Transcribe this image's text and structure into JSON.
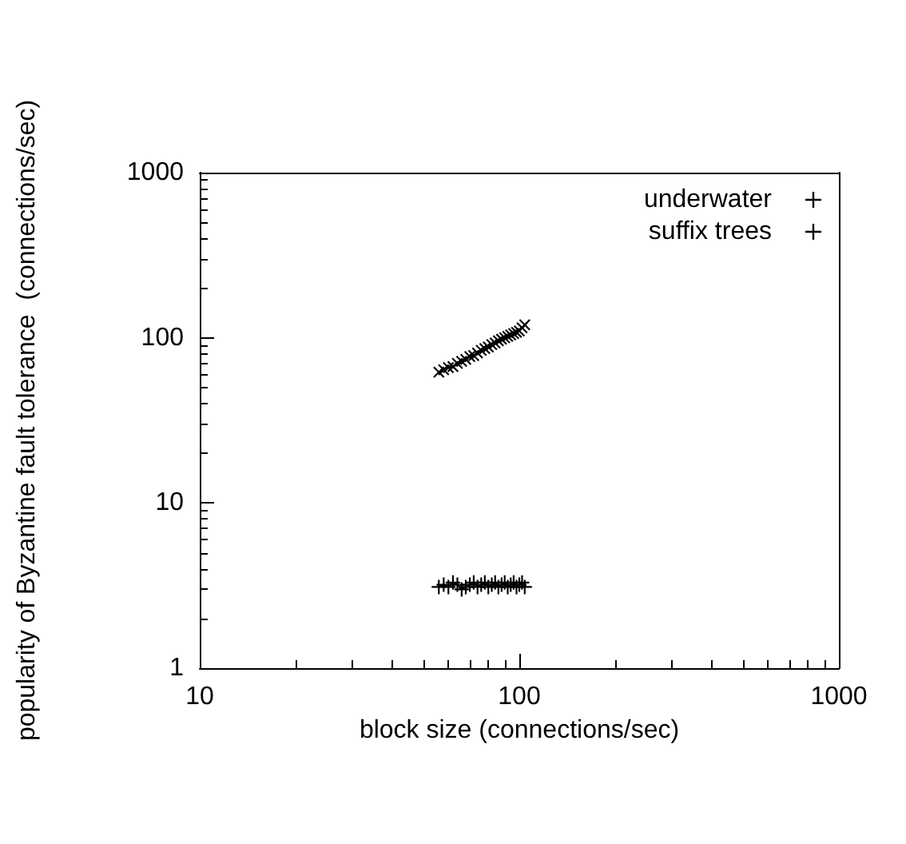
{
  "chart_data": {
    "type": "line",
    "xlabel": "block size (connections/sec)",
    "ylabel": "popularity of Byzantine fault tolerance  (connections/sec)",
    "log": "xy",
    "xlim": [
      10,
      1000
    ],
    "ylim": [
      1,
      1000
    ],
    "xticks": [
      10,
      100,
      1000
    ],
    "yticks": [
      1,
      10,
      100,
      1000
    ],
    "legend": "top right",
    "grid": false,
    "series": [
      {
        "name": "underwater",
        "color": "#000000",
        "marker": "cross",
        "line_style": "solid",
        "x": [
          56,
          58,
          60,
          62,
          64,
          66,
          68,
          70,
          72,
          74,
          76,
          78,
          80,
          82,
          84,
          86,
          88,
          90,
          92,
          94,
          96,
          98,
          100,
          102,
          104
        ],
        "values": [
          3.1,
          3.2,
          3.1,
          3.3,
          3.2,
          3.0,
          3.1,
          3.2,
          3.3,
          3.1,
          3.2,
          3.3,
          3.1,
          3.2,
          3.3,
          3.1,
          3.2,
          3.3,
          3.1,
          3.2,
          3.3,
          3.1,
          3.2,
          3.3,
          3.1
        ]
      },
      {
        "name": "suffix trees",
        "color": "#000000",
        "marker": "cross",
        "line_style": "dashed",
        "x": [
          56,
          58,
          60,
          62,
          64,
          66,
          68,
          70,
          72,
          74,
          76,
          78,
          80,
          82,
          84,
          86,
          88,
          90,
          92,
          94,
          96,
          98,
          100,
          102,
          104
        ],
        "values": [
          62,
          64,
          66,
          67,
          70,
          72,
          74,
          77,
          78,
          81,
          84,
          86,
          88,
          91,
          93,
          96,
          98,
          100,
          102,
          104,
          106,
          108,
          110,
          115,
          120
        ]
      }
    ]
  }
}
